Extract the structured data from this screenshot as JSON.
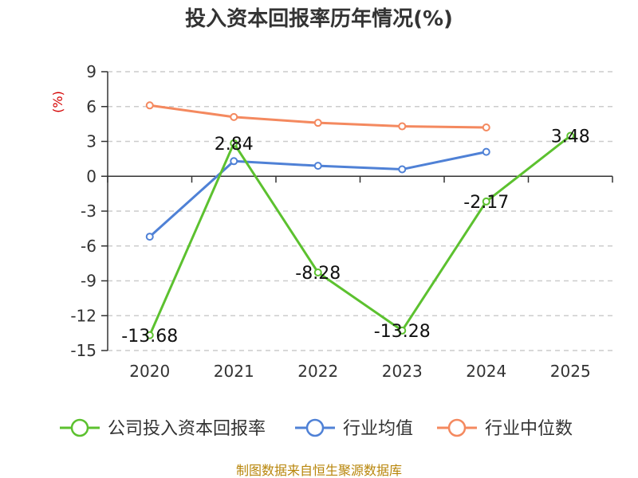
{
  "chart_data": {
    "type": "line",
    "title": "投入资本回报率历年情况(%)",
    "ylabel": "(%)",
    "xlabel": "",
    "categories": [
      "2020",
      "2021",
      "2022",
      "2023",
      "2024",
      "2025"
    ],
    "ylim": [
      -15,
      9
    ],
    "yticks": [
      9,
      6,
      3,
      0,
      -3,
      -6,
      -9,
      -12,
      -15
    ],
    "grid": true,
    "legend_position": "bottom",
    "series": [
      {
        "name": "公司投入资本回报率",
        "color": "#5cc12f",
        "values": [
          -13.68,
          2.84,
          -8.28,
          -13.28,
          -2.17,
          3.48
        ],
        "labels": [
          "-13.68",
          "2.84",
          "-8.28",
          "-13.28",
          "-2.17",
          "3.48"
        ]
      },
      {
        "name": "行业均值",
        "color": "#4f81d6",
        "values": [
          -5.2,
          1.3,
          0.9,
          0.6,
          2.1,
          null
        ]
      },
      {
        "name": "行业中位数",
        "color": "#f4895f",
        "values": [
          6.1,
          5.1,
          4.6,
          4.3,
          4.2,
          null
        ]
      }
    ]
  },
  "source": "制图数据来自恒生聚源数据库"
}
